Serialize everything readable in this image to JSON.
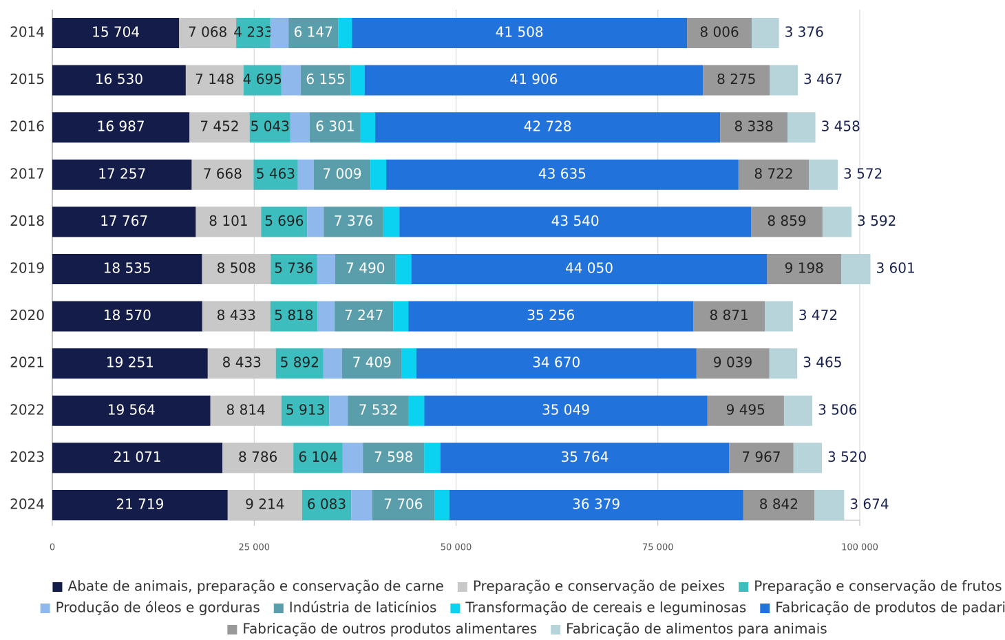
{
  "chart_data": {
    "type": "stacked-bar-horizontal",
    "categories": [
      "2014",
      "2015",
      "2016",
      "2017",
      "2018",
      "2019",
      "2020",
      "2021",
      "2022",
      "2023",
      "2024"
    ],
    "xlim": [
      0,
      100000
    ],
    "xticks": [
      0,
      {
        "value": 25000,
        "label": "25 000"
      },
      {
        "value": 50000,
        "label": "50 000"
      },
      {
        "value": 75000,
        "label": "75 000"
      },
      {
        "value": 100000,
        "label": "100 000"
      }
    ],
    "grid": true,
    "series": [
      {
        "name": "Abate de animais, preparação e conservação de carne",
        "color": "#141c4a",
        "values": [
          15704,
          16530,
          16987,
          17257,
          17767,
          18535,
          18570,
          19251,
          19564,
          21071,
          21719
        ],
        "value_labels": [
          "15 704",
          "16 530",
          "16 987",
          "17 257",
          "17 767",
          "18 535",
          "18 570",
          "19 251",
          "19 564",
          "21 071",
          "21 719"
        ]
      },
      {
        "name": "Preparação e conservação de peixes",
        "color": "#c8c8c8",
        "values": [
          7068,
          7148,
          7452,
          7668,
          8101,
          8508,
          8433,
          8433,
          8814,
          8786,
          9214
        ],
        "value_labels": [
          "7 068",
          "7 148",
          "7 452",
          "7 668",
          "8 101",
          "8 508",
          "8 433",
          "8 433",
          "8 814",
          "8 786",
          "9 214"
        ]
      },
      {
        "name": "Preparação e conservação de frutos",
        "color": "#3dbdbe",
        "values": [
          4233,
          4695,
          5043,
          5463,
          5696,
          5736,
          5818,
          5892,
          5913,
          6104,
          6083
        ],
        "value_labels": [
          "4 233",
          "4 695",
          "5 043",
          "5 463",
          "5 696",
          "5 736",
          "5 818",
          "5 892",
          "5 913",
          "6 104",
          "6 083"
        ]
      },
      {
        "name": "Produção de óleos e gorduras",
        "color": "#8fb8ec",
        "values": [
          2250,
          2400,
          2400,
          2000,
          2050,
          2250,
          2150,
          2300,
          2300,
          2500,
          2600
        ]
      },
      {
        "name": "Indústria de laticínios",
        "color": "#5b9eab",
        "values": [
          6147,
          6155,
          6301,
          7009,
          7376,
          7490,
          7247,
          7409,
          7532,
          7598,
          7706
        ],
        "value_labels": [
          "6 147",
          "6 155",
          "6 301",
          "7 009",
          "7 376",
          "7 490",
          "7 247",
          "7 409",
          "7 532",
          "7 598",
          "7 706"
        ]
      },
      {
        "name": "Transformação de cereais e leguminosas",
        "color": "#0ad2f0",
        "values": [
          1700,
          1750,
          1800,
          1950,
          2000,
          1950,
          1900,
          1800,
          1950,
          2000,
          1850
        ]
      },
      {
        "name": "Fabricação de produtos de padaria",
        "color": "#2272dc",
        "values": [
          41508,
          41906,
          42728,
          43635,
          43540,
          44050,
          35256,
          34670,
          35049,
          35764,
          36379
        ],
        "value_labels": [
          "41 508",
          "41 906",
          "42 728",
          "43 635",
          "43 540",
          "44 050",
          "35 256",
          "34 670",
          "35 049",
          "35 764",
          "36 379"
        ]
      },
      {
        "name": "Fabricação de outros produtos alimentares",
        "color": "#999999",
        "values": [
          8006,
          8275,
          8338,
          8722,
          8859,
          9198,
          8871,
          9039,
          9495,
          7967,
          8842
        ],
        "value_labels": [
          "8 006",
          "8 275",
          "8 338",
          "8 722",
          "8 859",
          "9 198",
          "8 871",
          "9 039",
          "9 495",
          "7 967",
          "8 842"
        ]
      },
      {
        "name": "Fabricação de alimentos para animais",
        "color": "#b6d4d9",
        "values": [
          3376,
          3467,
          3458,
          3572,
          3592,
          3601,
          3472,
          3465,
          3506,
          3520,
          3674
        ],
        "value_labels": [
          "3 376",
          "3 467",
          "3 458",
          "3 572",
          "3 592",
          "3 601",
          "3 472",
          "3 465",
          "3 506",
          "3 520",
          "3 674"
        ]
      }
    ]
  }
}
